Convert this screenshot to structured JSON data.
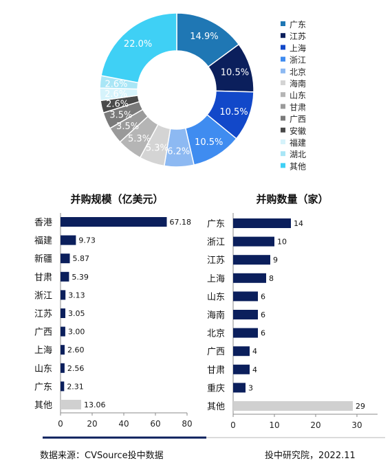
{
  "chart_data": [
    {
      "type": "pie",
      "series": [
        {
          "name": "广东",
          "value": 14.9,
          "label": "14.9%",
          "color": "#1f77b4"
        },
        {
          "name": "江苏",
          "value": 10.5,
          "label": "10.5%",
          "color": "#0b1f5c"
        },
        {
          "name": "上海",
          "value": 10.5,
          "label": "10.5%",
          "color": "#1248c9"
        },
        {
          "name": "浙江",
          "value": 10.5,
          "label": "10.5%",
          "color": "#3f8cf0"
        },
        {
          "name": "北京",
          "value": 6.2,
          "label": "6.2%",
          "color": "#8db9f2"
        },
        {
          "name": "海南",
          "value": 5.3,
          "label": "5.3%",
          "color": "#d4d4d4"
        },
        {
          "name": "山东",
          "value": 5.3,
          "label": "5.3%",
          "color": "#b5b5b5"
        },
        {
          "name": "甘肃",
          "value": 3.5,
          "label": "3.5%",
          "color": "#9a9a9a"
        },
        {
          "name": "广西",
          "value": 3.5,
          "label": "3.5%",
          "color": "#7a7a7a"
        },
        {
          "name": "安徽",
          "value": 2.6,
          "label": "2.6%",
          "color": "#4a4a4a"
        },
        {
          "name": "福建",
          "value": 2.6,
          "label": "2.6%",
          "color": "#d6f3fb"
        },
        {
          "name": "湖北",
          "value": 2.6,
          "label": "2.6%",
          "color": "#a9e6f6"
        },
        {
          "name": "其他",
          "value": 22.0,
          "label": "22.0%",
          "color": "#3fd0f5"
        }
      ],
      "legend": "right"
    },
    {
      "type": "bar",
      "orientation": "horizontal",
      "title": "并购规模（亿美元）",
      "categories": [
        "香港",
        "福建",
        "新疆",
        "甘肃",
        "浙江",
        "江苏",
        "广西",
        "上海",
        "山东",
        "广东",
        "其他"
      ],
      "values": [
        67.18,
        9.73,
        5.87,
        5.39,
        3.13,
        3.05,
        3.0,
        2.6,
        2.56,
        2.31,
        13.06
      ],
      "value_labels": [
        "67.18",
        "9.73",
        "5.87",
        "5.39",
        "3.13",
        "3.05",
        "3.00",
        "2.60",
        "2.56",
        "2.31",
        "13.06"
      ],
      "xlim": [
        0,
        80
      ],
      "xticks": [
        "0",
        "20",
        "40",
        "60",
        "80"
      ],
      "bar_color": "#0b1f5c",
      "other_color": "#d0d0d0",
      "grid": false
    },
    {
      "type": "bar",
      "orientation": "horizontal",
      "title": "并购数量（家）",
      "categories": [
        "广东",
        "浙江",
        "江苏",
        "上海",
        "山东",
        "海南",
        "北京",
        "广西",
        "甘肃",
        "重庆",
        "其他"
      ],
      "values": [
        14,
        10,
        9,
        8,
        6,
        6,
        6,
        4,
        4,
        3,
        29
      ],
      "value_labels": [
        "14",
        "10",
        "9",
        "8",
        "6",
        "6",
        "6",
        "4",
        "4",
        "3",
        "29"
      ],
      "xlim": [
        0,
        35
      ],
      "xticks": [
        "0",
        "10",
        "20",
        "30"
      ],
      "bar_color": "#0b1f5c",
      "other_color": "#d0d0d0",
      "grid": false
    }
  ],
  "footer": {
    "source": "数据来源：CVSource投中数据",
    "credit": "投中研究院，2022.11",
    "rule_color": "#0b1f5c"
  }
}
